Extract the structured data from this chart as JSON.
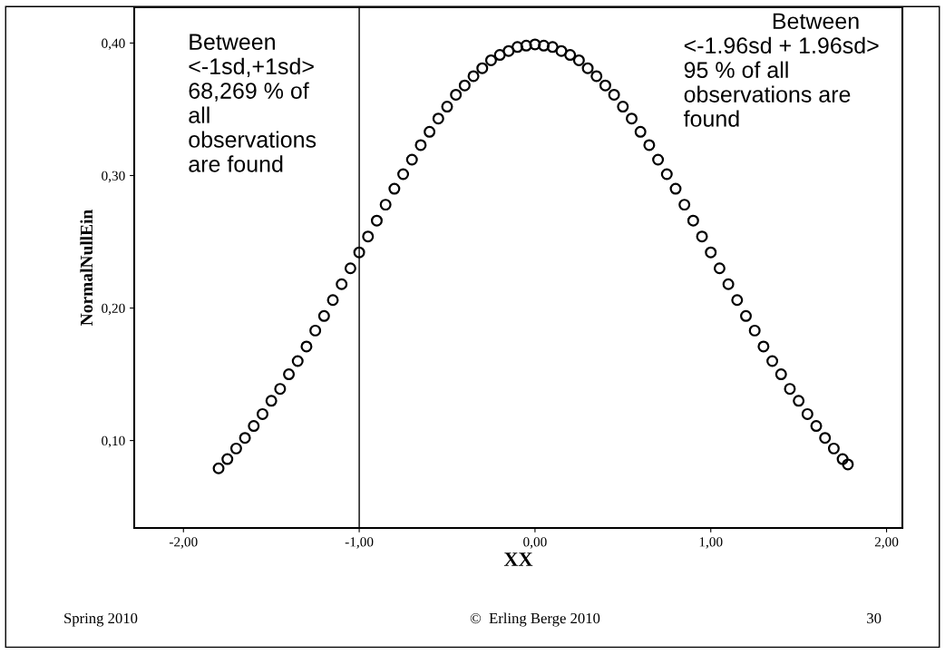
{
  "chart_data": {
    "type": "scatter",
    "xlabel": "XX",
    "ylabel": "NormalNullEin",
    "x": [
      -1.8,
      -1.75,
      -1.7,
      -1.65,
      -1.6,
      -1.55,
      -1.5,
      -1.45,
      -1.4,
      -1.35,
      -1.3,
      -1.25,
      -1.2,
      -1.15,
      -1.1,
      -1.05,
      -1.0,
      -0.95,
      -0.9,
      -0.85,
      -0.8,
      -0.75,
      -0.7,
      -0.65,
      -0.6,
      -0.55,
      -0.5,
      -0.45,
      -0.4,
      -0.35,
      -0.3,
      -0.25,
      -0.2,
      -0.15,
      -0.1,
      -0.05,
      0.0,
      0.05,
      0.1,
      0.15,
      0.2,
      0.25,
      0.3,
      0.35,
      0.4,
      0.45,
      0.5,
      0.55,
      0.6,
      0.65,
      0.7,
      0.75,
      0.8,
      0.85,
      0.9,
      0.95,
      1.0,
      1.05,
      1.1,
      1.15,
      1.2,
      1.25,
      1.3,
      1.35,
      1.4,
      1.45,
      1.5,
      1.55,
      1.6,
      1.65,
      1.7,
      1.75,
      1.78
    ],
    "series": [
      {
        "color": "#000000",
        "values": [
          0.079,
          0.086,
          0.094,
          0.102,
          0.111,
          0.12,
          0.13,
          0.139,
          0.15,
          0.16,
          0.171,
          0.183,
          0.194,
          0.206,
          0.218,
          0.23,
          0.242,
          0.254,
          0.266,
          0.278,
          0.29,
          0.301,
          0.312,
          0.323,
          0.333,
          0.343,
          0.352,
          0.361,
          0.368,
          0.375,
          0.381,
          0.387,
          0.391,
          0.394,
          0.397,
          0.398,
          0.399,
          0.398,
          0.397,
          0.394,
          0.391,
          0.387,
          0.381,
          0.375,
          0.368,
          0.361,
          0.352,
          0.343,
          0.333,
          0.323,
          0.312,
          0.301,
          0.29,
          0.278,
          0.266,
          0.254,
          0.242,
          0.23,
          0.218,
          0.206,
          0.194,
          0.183,
          0.171,
          0.16,
          0.15,
          0.139,
          0.13,
          0.12,
          0.111,
          0.102,
          0.094,
          0.086,
          0.082
        ]
      }
    ],
    "marker": "circle",
    "xlim": [
      -2.28,
      2.09
    ],
    "ylim": [
      0.034,
      0.427
    ],
    "xticks": [
      {
        "value": -2,
        "label": "-2,00"
      },
      {
        "value": -1,
        "label": "-1,00"
      },
      {
        "value": 0,
        "label": "0,00"
      },
      {
        "value": 1,
        "label": "1,00"
      },
      {
        "value": 2,
        "label": "2,00"
      }
    ],
    "yticks": [
      {
        "value": 0.1,
        "label": "0,10"
      },
      {
        "value": 0.2,
        "label": "0,20"
      },
      {
        "value": 0.3,
        "label": "0,30"
      },
      {
        "value": 0.4,
        "label": "0,40"
      }
    ],
    "ref_lines": [
      {
        "axis": "x",
        "value": -1,
        "color": "#000000"
      }
    ],
    "annotations": [
      "Between\n<-1sd,+1sd>\n68,269 % of\nall\nobservations\nare found",
      "              Between\n<-1.96sd + 1.96sd>\n95 % of all\nobservations are\nfound",
      "Spring 2010",
      "©  Erling Berge 2010",
      "30"
    ]
  }
}
